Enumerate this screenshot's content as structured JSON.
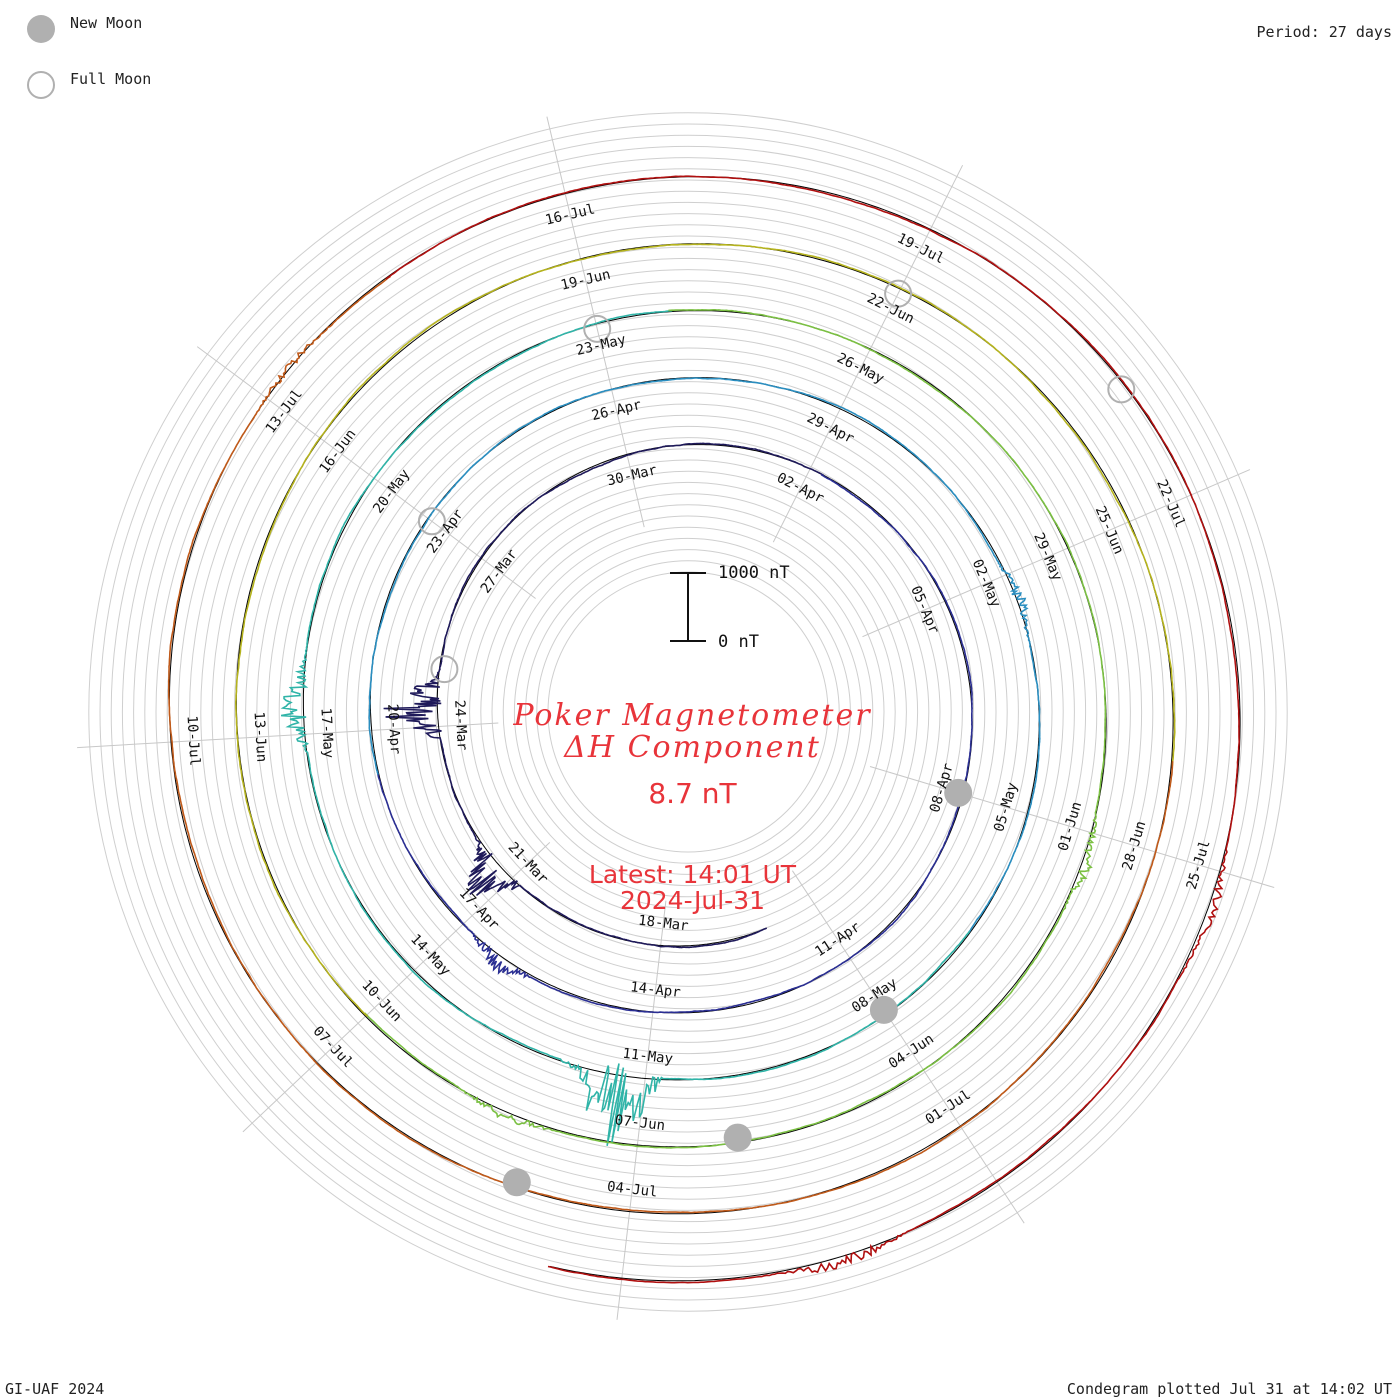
{
  "legend": {
    "new_moon": "New Moon",
    "full_moon": "Full Moon",
    "new_moon_color": "#b0b0b0",
    "full_moon_color": "#b0b0b0"
  },
  "period_label": "Period: 27 days",
  "footer_left": "GI-UAF 2024",
  "footer_right": "Condegram plotted Jul 31 at 14:02 UT",
  "title": {
    "line1": "Poker Magnetometer",
    "line2": "ΔH Component"
  },
  "current_value": "8.7 nT",
  "latest": {
    "time": "Latest: 14:01 UT",
    "date": "2024-Jul-31"
  },
  "scale_bar": {
    "top_label": "1000 nT",
    "bottom_label": "0 nT"
  },
  "chart_data": {
    "type": "line",
    "period_days": 27,
    "start_date": "2024-Mar-16",
    "end_date": "2024-Jul-31",
    "scale_nT": [
      0,
      1000
    ],
    "date_labels": [
      "18-Mar",
      "21-Mar",
      "24-Mar",
      "27-Mar",
      "30-Mar",
      "02-Apr",
      "05-Apr",
      "08-Apr",
      "11-Apr",
      "14-Apr",
      "17-Apr",
      "20-Apr",
      "23-Apr",
      "26-Apr",
      "29-Apr",
      "02-May",
      "05-May",
      "08-May",
      "11-May",
      "14-May",
      "17-May",
      "20-May",
      "23-May",
      "26-May",
      "29-May",
      "01-Jun",
      "04-Jun",
      "07-Jun",
      "10-Jun",
      "13-Jun",
      "16-Jun",
      "19-Jun",
      "22-Jun",
      "25-Jun",
      "28-Jun",
      "01-Jul",
      "04-Jul",
      "07-Jul",
      "10-Jul",
      "13-Jul",
      "16-Jul",
      "19-Jul",
      "22-Jul",
      "25-Jul"
    ],
    "new_moons": [
      "2024-Apr-08",
      "2024-May-08",
      "2024-Jun-06",
      "2024-Jul-05"
    ],
    "full_moons": [
      "2024-Mar-25",
      "2024-Apr-23",
      "2024-May-23",
      "2024-Jun-22",
      "2024-Jul-21"
    ],
    "series": [
      {
        "color": "#1f1a5a",
        "events": [
          {
            "date": "2024-Mar-21",
            "nT": 600
          },
          {
            "date": "2024-Mar-24",
            "nT": 900
          }
        ]
      },
      {
        "color": "#2b2f93",
        "events": [
          {
            "date": "2024-Apr-16",
            "nT": 220
          },
          {
            "date": "2024-Apr-20",
            "nT": 260
          }
        ]
      },
      {
        "color": "#2a8ec0",
        "events": [
          {
            "date": "2024-May-02",
            "nT": 150
          },
          {
            "date": "2024-May-27",
            "nT": 120
          }
        ]
      },
      {
        "color": "#30b4a8",
        "events": [
          {
            "date": "2024-May-11",
            "nT": 1150
          },
          {
            "date": "2024-May-17",
            "nT": 350
          }
        ]
      },
      {
        "color": "#7bc043",
        "events": [
          {
            "date": "2024-Jun-08",
            "nT": 120
          },
          {
            "date": "2024-Jun-01",
            "nT": 150
          }
        ]
      },
      {
        "color": "#b5b31e",
        "events": [
          {
            "date": "2024-Jul-01",
            "nT": 120
          },
          {
            "date": "2024-Jun-28",
            "nT": 100
          }
        ]
      },
      {
        "color": "#c05a1a",
        "events": [
          {
            "date": "2024-Jul-13",
            "nT": 80
          }
        ]
      },
      {
        "color": "#b01010",
        "events": [
          {
            "date": "2024-Jul-25",
            "nT": 120
          },
          {
            "date": "2024-Jul-29",
            "nT": 150
          }
        ]
      }
    ]
  }
}
